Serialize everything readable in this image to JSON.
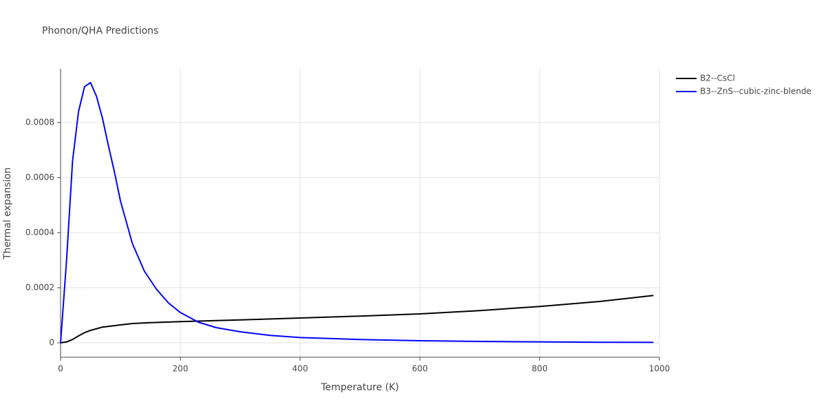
{
  "chart_data": {
    "type": "line",
    "title": "Phonon/QHA Predictions",
    "x_label": "Temperature (K)",
    "y_label": "Thermal expansion",
    "xlim": [
      0,
      1000
    ],
    "xticks": [
      0,
      200,
      400,
      600,
      800,
      1000
    ],
    "ylim": [
      -5.25e-05,
      0.000995
    ],
    "yticks": [
      0,
      0.0002,
      0.0004,
      0.0006,
      0.0008
    ],
    "grid": true,
    "legend": "outside-top-right",
    "series": [
      {
        "name": "B2--CsCl",
        "color": "#000000",
        "x": [
          0,
          10,
          20,
          30,
          40,
          50,
          70,
          100,
          120,
          150,
          200,
          300,
          400,
          500,
          600,
          700,
          800,
          900,
          990
        ],
        "values": [
          0,
          3e-06,
          1.2e-05,
          2.5e-05,
          3.7e-05,
          4.5e-05,
          5.7e-05,
          6.5e-05,
          7e-05,
          7.3e-05,
          7.7e-05,
          8.3e-05,
          9e-05,
          9.7e-05,
          0.000105,
          0.000117,
          0.000132,
          0.00015,
          0.000172
        ]
      },
      {
        "name": "B3--ZnS--cubic-zinc-blende",
        "color": "#0000ff",
        "x": [
          0,
          10,
          20,
          30,
          40,
          50,
          60,
          70,
          80,
          90,
          100,
          120,
          140,
          160,
          180,
          200,
          230,
          260,
          300,
          350,
          400,
          500,
          600,
          700,
          800,
          900,
          990
        ],
        "values": [
          0,
          0.0003,
          0.00066,
          0.00084,
          0.00093,
          0.000945,
          0.000895,
          0.000815,
          0.000715,
          0.00062,
          0.000515,
          0.00036,
          0.00026,
          0.000195,
          0.000145,
          0.00011,
          7.5e-05,
          5.5e-05,
          4e-05,
          2.7e-05,
          1.9e-05,
          1.2e-05,
          7.5e-06,
          5e-06,
          3.5e-06,
          2e-06,
          1.5e-06
        ]
      }
    ]
  }
}
